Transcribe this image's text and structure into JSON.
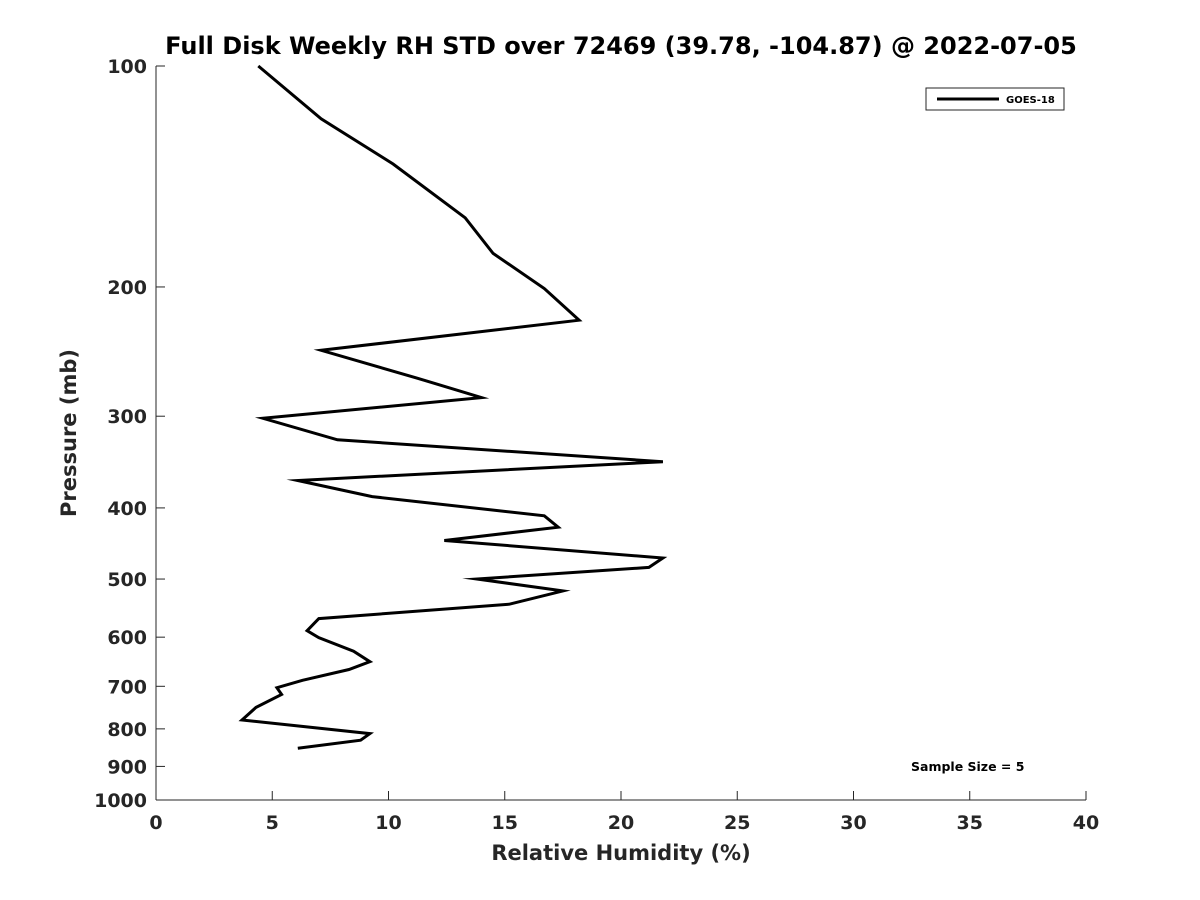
{
  "chart_data": {
    "type": "line",
    "title": "Full Disk Weekly RH STD over 72469 (39.78, -104.87) @ 2022-07-05",
    "xlabel": "Relative Humidity (%)",
    "ylabel": "Pressure (mb)",
    "xlim": [
      0,
      40
    ],
    "ylim": [
      100,
      1000
    ],
    "y_scale": "log",
    "y_reversed": true,
    "x_ticks": [
      0,
      5,
      10,
      15,
      20,
      25,
      30,
      35,
      40
    ],
    "x_tick_labels": [
      "0",
      "5",
      "10",
      "15",
      "20",
      "25",
      "30",
      "35",
      "40"
    ],
    "y_ticks": [
      100,
      200,
      300,
      400,
      500,
      600,
      700,
      800,
      900,
      1000
    ],
    "y_tick_labels": [
      "100",
      "200",
      "300",
      "400",
      "500",
      "600",
      "700",
      "800",
      "900",
      "1000"
    ],
    "grid": false,
    "legend_position": "top-right",
    "annotation": "Sample Size = 5",
    "series": [
      {
        "name": "GOES-18",
        "color": "#000000",
        "points": [
          {
            "x": 4.4,
            "y": 100
          },
          {
            "x": 7.1,
            "y": 118
          },
          {
            "x": 10.2,
            "y": 136
          },
          {
            "x": 13.3,
            "y": 161
          },
          {
            "x": 14.5,
            "y": 180
          },
          {
            "x": 16.7,
            "y": 201
          },
          {
            "x": 18.2,
            "y": 222
          },
          {
            "x": 7.1,
            "y": 244
          },
          {
            "x": 11.2,
            "y": 266
          },
          {
            "x": 14.0,
            "y": 283
          },
          {
            "x": 4.6,
            "y": 302
          },
          {
            "x": 7.8,
            "y": 323
          },
          {
            "x": 21.8,
            "y": 346
          },
          {
            "x": 6.1,
            "y": 367
          },
          {
            "x": 9.3,
            "y": 386
          },
          {
            "x": 16.7,
            "y": 410
          },
          {
            "x": 17.3,
            "y": 425
          },
          {
            "x": 12.4,
            "y": 443
          },
          {
            "x": 21.8,
            "y": 468
          },
          {
            "x": 21.2,
            "y": 482
          },
          {
            "x": 13.8,
            "y": 500
          },
          {
            "x": 17.5,
            "y": 519
          },
          {
            "x": 15.2,
            "y": 541
          },
          {
            "x": 7.0,
            "y": 566
          },
          {
            "x": 6.5,
            "y": 588
          },
          {
            "x": 7.0,
            "y": 601
          },
          {
            "x": 8.5,
            "y": 627
          },
          {
            "x": 9.2,
            "y": 648
          },
          {
            "x": 8.3,
            "y": 664
          },
          {
            "x": 6.3,
            "y": 687
          },
          {
            "x": 5.2,
            "y": 703
          },
          {
            "x": 5.4,
            "y": 718
          },
          {
            "x": 4.3,
            "y": 748
          },
          {
            "x": 3.7,
            "y": 778
          },
          {
            "x": 9.2,
            "y": 812
          },
          {
            "x": 8.8,
            "y": 829
          },
          {
            "x": 6.1,
            "y": 850
          }
        ]
      }
    ]
  }
}
